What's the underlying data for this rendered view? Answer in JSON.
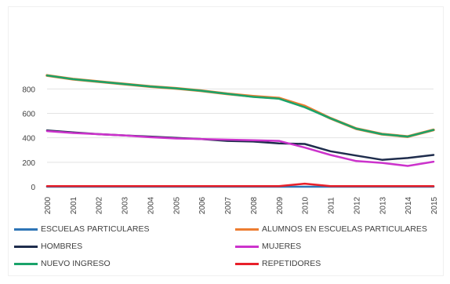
{
  "chart_data": {
    "type": "line",
    "title": "",
    "xlabel": "",
    "ylabel": "",
    "x": [
      "2000",
      "2001",
      "2002",
      "2003",
      "2004",
      "2005",
      "2006",
      "2007",
      "2008",
      "2009",
      "2010",
      "2011",
      "2012",
      "2013",
      "2014",
      "2015"
    ],
    "ylim": [
      0,
      950
    ],
    "yticks": [
      "0",
      "200",
      "400",
      "600",
      "800"
    ],
    "grid": true,
    "legend_position": "bottom",
    "series": [
      {
        "name": "ESCUELAS PARTICULARES",
        "color": "#2e75b6",
        "values": [
          0,
          0,
          0,
          0,
          0,
          0,
          0,
          0,
          0,
          0,
          0,
          0,
          0,
          0,
          0,
          0
        ]
      },
      {
        "name": "ALUMNOS EN ESCUELAS PARTICULARES",
        "color": "#ed7d31",
        "values": [
          910,
          880,
          860,
          840,
          820,
          805,
          785,
          760,
          740,
          725,
          660,
          560,
          475,
          430,
          410,
          465
        ]
      },
      {
        "name": "HOMBRES",
        "color": "#1f2d4d",
        "values": [
          460,
          445,
          430,
          420,
          410,
          400,
          390,
          375,
          370,
          355,
          350,
          290,
          255,
          220,
          235,
          260
        ]
      },
      {
        "name": "MUJERES",
        "color": "#cc33cc",
        "values": [
          455,
          440,
          430,
          420,
          405,
          395,
          390,
          385,
          380,
          375,
          320,
          260,
          210,
          195,
          170,
          205
        ]
      },
      {
        "name": "NUEVO INGRESO",
        "color": "#1aa36a",
        "values": [
          910,
          880,
          860,
          840,
          820,
          805,
          785,
          760,
          735,
          720,
          650,
          560,
          475,
          430,
          410,
          465
        ]
      },
      {
        "name": "REPETIDORES",
        "color": "#e8202a",
        "values": [
          5,
          5,
          5,
          5,
          5,
          5,
          5,
          5,
          5,
          5,
          25,
          5,
          5,
          5,
          5,
          5
        ]
      }
    ]
  }
}
